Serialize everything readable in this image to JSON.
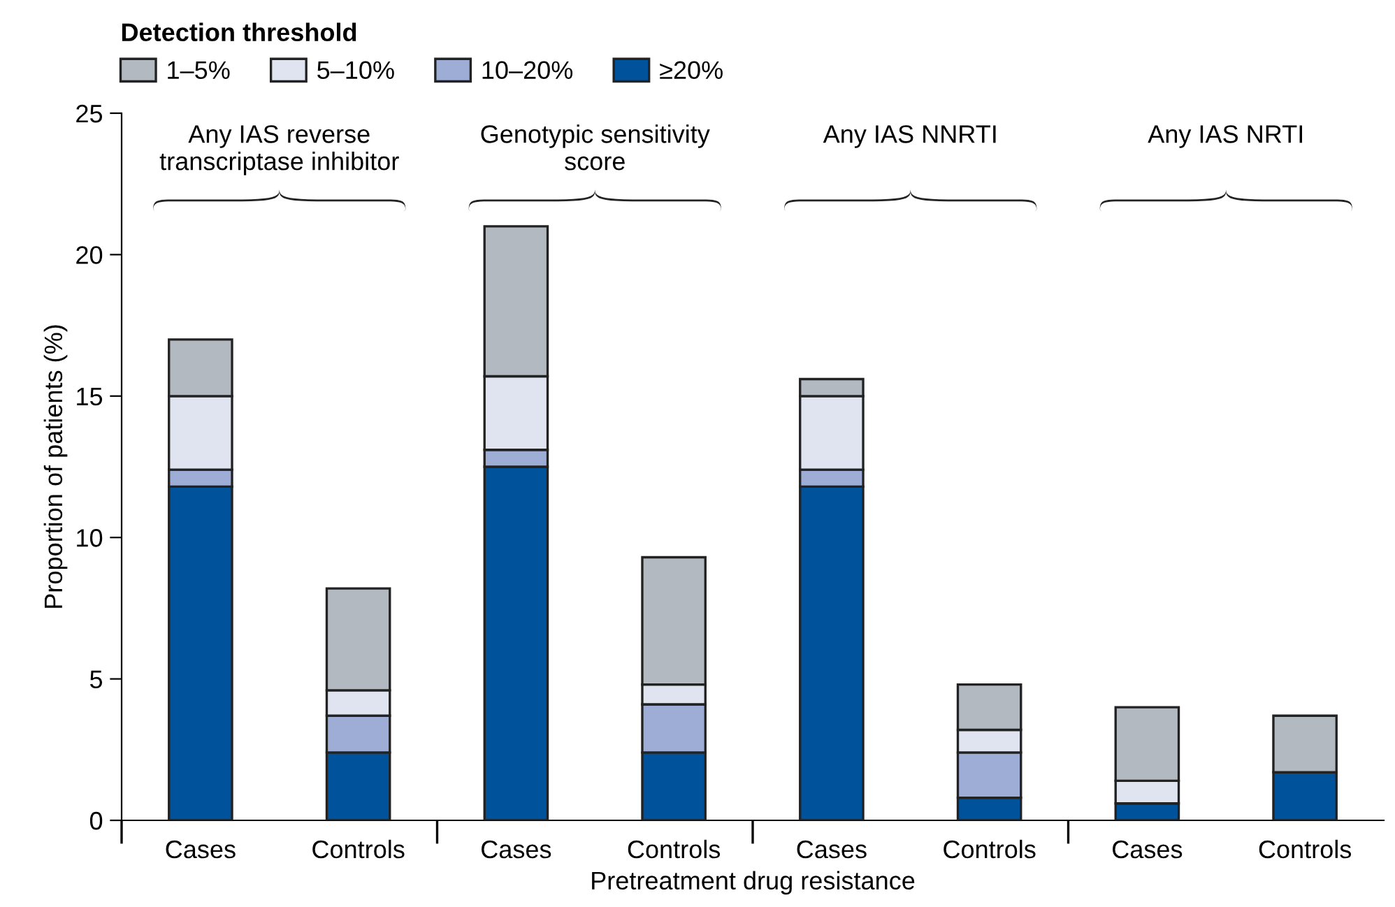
{
  "chart_data": {
    "type": "bar",
    "stacked": true,
    "xlabel": "Pretreatment drug resistance",
    "ylabel": "Proportion of patients (%)",
    "legend_title": "Detection threshold",
    "legend": "top left",
    "categories": [
      "Cases",
      "Controls",
      "Cases",
      "Controls",
      "Cases",
      "Controls",
      "Cases",
      "Controls"
    ],
    "series": [
      {
        "name": "≥20%",
        "color": "#00529b",
        "values": [
          11.8,
          2.4,
          12.5,
          2.4,
          11.8,
          0.8,
          0.6,
          1.7
        ]
      },
      {
        "name": "10–20%",
        "color": "#9dadd6",
        "values": [
          0.6,
          1.3,
          0.6,
          1.7,
          0.6,
          1.6,
          0,
          0
        ]
      },
      {
        "name": "5–10%",
        "color": "#dfe4f0",
        "values": [
          2.6,
          0.9,
          2.6,
          0.7,
          2.6,
          0.8,
          0.8,
          0
        ]
      },
      {
        "name": "1–5%",
        "color": "#b2b9c0",
        "values": [
          2.0,
          3.6,
          5.3,
          4.5,
          0.6,
          1.6,
          2.6,
          2.0
        ]
      }
    ],
    "ylim": [
      0,
      25
    ],
    "yticks": [
      0,
      5,
      10,
      15,
      20,
      25
    ],
    "grid": false,
    "annotations": [
      "Any IAS reverse\ntranscriptase inhibitor",
      "Genotypic sensitivity\nscore",
      "Any IAS NNRTI",
      "Any IAS NRTI"
    ]
  }
}
